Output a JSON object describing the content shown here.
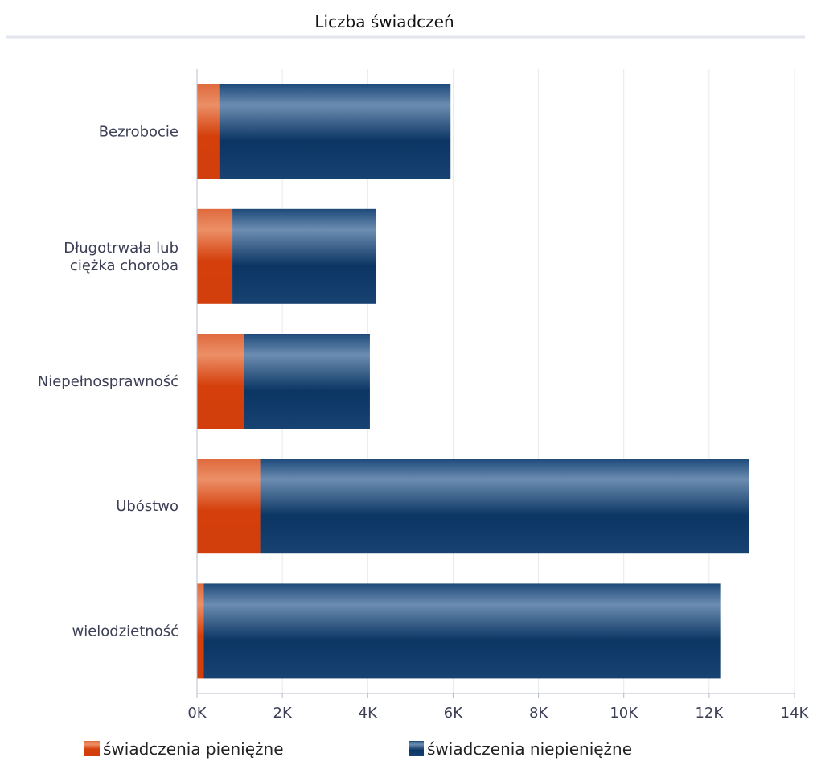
{
  "chart_data": {
    "type": "bar",
    "orientation": "horizontal",
    "stacked": true,
    "title": "Liczba świadczeń",
    "categories": [
      "Bezrobocie",
      "Długotrwała lub ciężka choroba",
      "Niepełnosprawność",
      "Ubóstwo",
      "wielodzietność"
    ],
    "category_label_lines": [
      [
        "Bezrobocie"
      ],
      [
        "Długotrwała lub",
        "ciężka choroba"
      ],
      [
        "Niepełnosprawność"
      ],
      [
        "Ubóstwo"
      ],
      [
        "wielodzietność"
      ]
    ],
    "series": [
      {
        "name": "świadczenia pieniężne",
        "color": "#d5420f",
        "values": [
          520,
          830,
          1100,
          1480,
          160
        ]
      },
      {
        "name": "świadczenia niepieniężne",
        "color": "#0f3a6b",
        "values": [
          5420,
          3370,
          2950,
          11460,
          12100
        ]
      }
    ],
    "xlim": [
      0,
      14000
    ],
    "xticks": [
      0,
      2000,
      4000,
      6000,
      8000,
      10000,
      12000,
      14000
    ],
    "xtick_labels": [
      "0K",
      "2K",
      "4K",
      "6K",
      "8K",
      "10K",
      "12K",
      "14K"
    ],
    "xlabel": "",
    "ylabel": "",
    "grid": true,
    "legend_position": "bottom"
  }
}
